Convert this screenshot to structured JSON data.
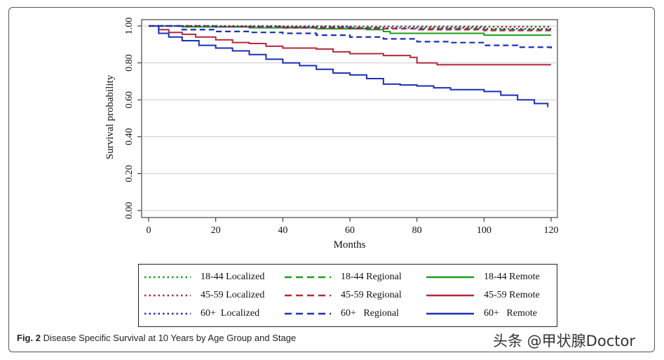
{
  "chart_data": {
    "type": "line",
    "title": "",
    "xlabel": "Months",
    "ylabel": "Survival probability",
    "xlim": [
      0,
      120
    ],
    "ylim": [
      0,
      1
    ],
    "x_ticks": [
      0,
      20,
      40,
      60,
      80,
      100,
      120
    ],
    "y_ticks": [
      0.0,
      0.2,
      0.4,
      0.6,
      0.8,
      1.0
    ],
    "y_tick_labels": [
      "0.00",
      "0.20",
      "0.40",
      "0.60",
      "0.80",
      "1.00"
    ],
    "grid": "horizontal",
    "legend_position": "bottom",
    "series": [
      {
        "name": "18-44 Localized",
        "color": "#1a9e1a",
        "style": "dotted",
        "x": [
          0,
          20,
          40,
          60,
          80,
          100,
          120
        ],
        "y": [
          1.0,
          1.0,
          0.999,
          0.998,
          0.998,
          0.997,
          0.997
        ]
      },
      {
        "name": "18-44 Regional",
        "color": "#1a9e1a",
        "style": "dashed",
        "x": [
          0,
          20,
          40,
          60,
          70,
          80,
          100,
          120
        ],
        "y": [
          1.0,
          0.997,
          0.993,
          0.99,
          0.985,
          0.985,
          0.98,
          0.98
        ]
      },
      {
        "name": "18-44 Remote",
        "color": "#1a9e1a",
        "style": "solid",
        "x": [
          0,
          10,
          30,
          50,
          65,
          70,
          72,
          90,
          100,
          120
        ],
        "y": [
          1.0,
          0.995,
          0.99,
          0.985,
          0.98,
          0.97,
          0.96,
          0.96,
          0.95,
          0.95
        ]
      },
      {
        "name": "45-59 Localized",
        "color": "#b22a3c",
        "style": "dotted",
        "x": [
          0,
          20,
          40,
          60,
          80,
          100,
          120
        ],
        "y": [
          1.0,
          0.999,
          0.998,
          0.997,
          0.996,
          0.995,
          0.995
        ]
      },
      {
        "name": "45-59 Regional",
        "color": "#b22a3c",
        "style": "dashed",
        "x": [
          0,
          20,
          40,
          60,
          80,
          100,
          120
        ],
        "y": [
          1.0,
          0.996,
          0.99,
          0.985,
          0.98,
          0.975,
          0.975
        ]
      },
      {
        "name": "45-59 Remote",
        "color": "#b22a3c",
        "style": "solid",
        "x": [
          0,
          3,
          6,
          10,
          14,
          20,
          25,
          30,
          35,
          40,
          50,
          55,
          60,
          70,
          78,
          80,
          86,
          120
        ],
        "y": [
          1.0,
          0.98,
          0.965,
          0.955,
          0.94,
          0.925,
          0.91,
          0.905,
          0.89,
          0.88,
          0.875,
          0.86,
          0.85,
          0.84,
          0.83,
          0.8,
          0.79,
          0.79
        ]
      },
      {
        "name": "60+ Localized",
        "color": "#1a2fb8",
        "style": "dotted",
        "x": [
          0,
          20,
          40,
          60,
          80,
          100,
          120
        ],
        "y": [
          1.0,
          0.998,
          0.995,
          0.99,
          0.99,
          0.985,
          0.985
        ]
      },
      {
        "name": "60+ Regional",
        "color": "#1a2fb8",
        "style": "dashed",
        "x": [
          0,
          10,
          20,
          30,
          40,
          50,
          60,
          70,
          80,
          90,
          100,
          110,
          120
        ],
        "y": [
          1.0,
          0.98,
          0.97,
          0.965,
          0.96,
          0.95,
          0.94,
          0.93,
          0.915,
          0.91,
          0.895,
          0.885,
          0.87
        ]
      },
      {
        "name": "60+ Remote",
        "color": "#1a2fb8",
        "style": "solid",
        "x": [
          0,
          3,
          6,
          10,
          15,
          20,
          25,
          30,
          35,
          40,
          45,
          50,
          55,
          60,
          65,
          70,
          75,
          80,
          85,
          90,
          100,
          105,
          110,
          115,
          119
        ],
        "y": [
          1.0,
          0.96,
          0.94,
          0.92,
          0.895,
          0.88,
          0.865,
          0.845,
          0.82,
          0.8,
          0.785,
          0.765,
          0.745,
          0.735,
          0.715,
          0.685,
          0.68,
          0.675,
          0.665,
          0.655,
          0.645,
          0.625,
          0.6,
          0.58,
          0.56
        ]
      }
    ],
    "legend": [
      {
        "label": "18-44 Localized",
        "color": "#1a9e1a",
        "style": "dotted"
      },
      {
        "label": "18-44 Regional",
        "color": "#1a9e1a",
        "style": "dashed"
      },
      {
        "label": "18-44 Remote",
        "color": "#1a9e1a",
        "style": "solid"
      },
      {
        "label": "45-59 Localized",
        "color": "#b22a3c",
        "style": "dotted"
      },
      {
        "label": "45-59 Regional",
        "color": "#b22a3c",
        "style": "dashed"
      },
      {
        "label": "45-59 Remote",
        "color": "#b22a3c",
        "style": "solid"
      },
      {
        "label": "60+  Localized",
        "color": "#1a2fb8",
        "style": "dotted"
      },
      {
        "label": "60+   Regional",
        "color": "#1a2fb8",
        "style": "dashed"
      },
      {
        "label": "60+   Remote",
        "color": "#1a2fb8",
        "style": "solid"
      }
    ]
  },
  "caption": {
    "label": "Fig. 2",
    "text": " Disease Specific Survival at 10 Years by Age Group and Stage"
  },
  "watermark": "头条 @甲状腺Doctor"
}
